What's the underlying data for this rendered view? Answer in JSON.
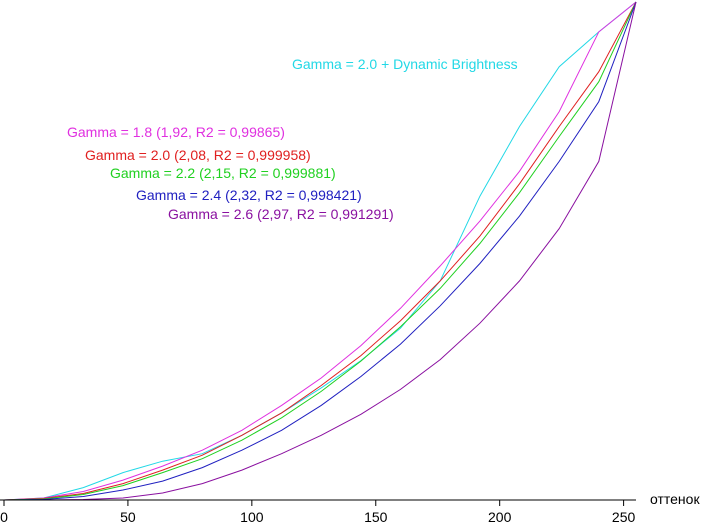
{
  "chart_data": {
    "type": "line",
    "xlabel": "оттенок",
    "ylabel": "",
    "xlim": [
      0,
      255
    ],
    "ylim": [
      0,
      1
    ],
    "x_ticks": [
      0,
      50,
      100,
      150,
      200,
      250
    ],
    "x_tick_labels": [
      "0",
      "50",
      "100",
      "150",
      "200",
      "250"
    ],
    "grid": false,
    "x": [
      0,
      16,
      32,
      48,
      64,
      80,
      96,
      112,
      128,
      144,
      160,
      176,
      192,
      208,
      224,
      240,
      255
    ],
    "series": [
      {
        "name": "Gamma = 2.0 + Dynamic Brightness",
        "color": "#22d8e6",
        "values": [
          0,
          0.004,
          0.025,
          0.055,
          0.078,
          0.093,
          0.13,
          0.175,
          0.225,
          0.28,
          0.345,
          0.44,
          0.61,
          0.75,
          0.87,
          0.94,
          1.0
        ]
      },
      {
        "name": "Gamma = 1.8 (1,92, R2 = 0,99865)",
        "color": "#e030e0",
        "values": [
          0,
          0.004,
          0.017,
          0.04,
          0.068,
          0.1,
          0.14,
          0.19,
          0.245,
          0.31,
          0.385,
          0.47,
          0.56,
          0.66,
          0.78,
          0.94,
          1.0
        ]
      },
      {
        "name": "Gamma = 2.0 (2,08, R2 = 0,999958)",
        "color": "#e02020",
        "values": [
          0,
          0.003,
          0.013,
          0.033,
          0.06,
          0.09,
          0.13,
          0.175,
          0.23,
          0.29,
          0.36,
          0.44,
          0.53,
          0.635,
          0.75,
          0.86,
          1.0
        ]
      },
      {
        "name": "Gamma = 2.2 (2,15, R2 = 0,999881)",
        "color": "#20d020",
        "values": [
          0,
          0.002,
          0.011,
          0.029,
          0.055,
          0.083,
          0.12,
          0.165,
          0.218,
          0.279,
          0.348,
          0.425,
          0.515,
          0.617,
          0.73,
          0.84,
          1.0
        ]
      },
      {
        "name": "Gamma = 2.4 (2,32, R2 = 0,998421)",
        "color": "#2020c0",
        "values": [
          0,
          0.001,
          0.007,
          0.02,
          0.038,
          0.065,
          0.1,
          0.14,
          0.19,
          0.248,
          0.313,
          0.39,
          0.475,
          0.57,
          0.68,
          0.8,
          1.0
        ]
      },
      {
        "name": "Gamma = 2.6 (2,97, R2 = 0,991291)",
        "color": "#8a10a0",
        "values": [
          0,
          0,
          0.001,
          0.004,
          0.014,
          0.033,
          0.06,
          0.093,
          0.13,
          0.172,
          0.222,
          0.282,
          0.355,
          0.44,
          0.545,
          0.68,
          1.0
        ]
      }
    ]
  }
}
